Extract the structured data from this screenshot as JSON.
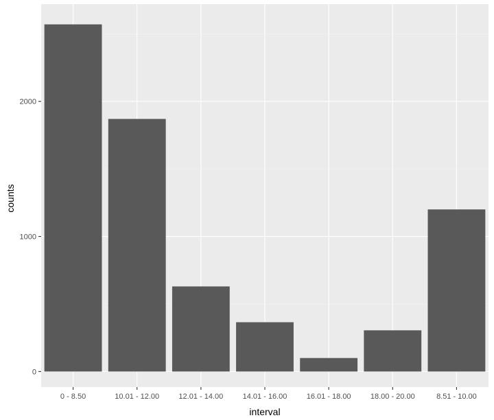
{
  "chart_data": {
    "type": "bar",
    "title": "",
    "xlabel": "interval",
    "ylabel": "counts",
    "categories": [
      "0 - 8.50",
      "10.01 - 12.00",
      "12.01 - 14.00",
      "14.01 - 16.00",
      "16.01 - 18.00",
      "18.00 - 20.00",
      "8.51 - 10.00"
    ],
    "values": [
      2570,
      1870,
      630,
      365,
      100,
      305,
      1200
    ],
    "ylim": [
      -115,
      2720
    ],
    "yticks": [
      0,
      1000,
      2000
    ],
    "ytick_labels": [
      "0",
      "1000",
      "2000"
    ],
    "grid": true,
    "legend": "none",
    "colors": {
      "bar": "#595959",
      "panel": "#ebebeb",
      "grid_major": "#ffffff",
      "grid_minor": "#f4f4f4",
      "tick": "#333333"
    }
  }
}
